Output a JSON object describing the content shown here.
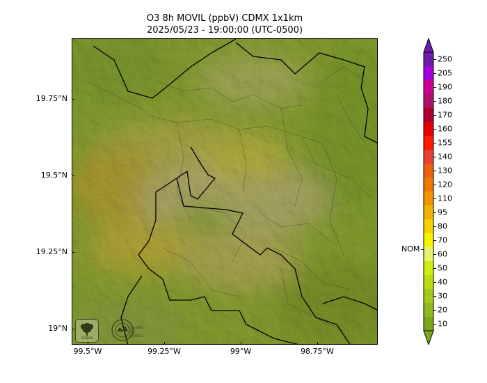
{
  "title": {
    "line1": "O3 8h MOVIL (ppbV) CDMX 1x1km",
    "line2": "2025/05/23 - 19:00:00 (UTC-0500)"
  },
  "axes": {
    "y_labels": [
      "19.75°N",
      "19.5°N",
      "19.25°N",
      "19°N"
    ],
    "x_labels": [
      "99.5°W",
      "99.25°W",
      "99°W",
      "98.75°W"
    ]
  },
  "colorbar": {
    "nom_label": "NOM",
    "levels": [
      {
        "value": "10",
        "color": "#7ea81c"
      },
      {
        "value": "20",
        "color": "#8fb81f"
      },
      {
        "value": "30",
        "color": "#a2cc17"
      },
      {
        "value": "40",
        "color": "#b9de10"
      },
      {
        "value": "50",
        "color": "#cfee0f"
      },
      {
        "value": "60",
        "color": "#e6f46a"
      },
      {
        "value": "70",
        "color": "#f7f200"
      },
      {
        "value": "80",
        "color": "#f5d200"
      },
      {
        "value": "95",
        "color": "#f2b200"
      },
      {
        "value": "110",
        "color": "#f29300"
      },
      {
        "value": "120",
        "color": "#f07800"
      },
      {
        "value": "130",
        "color": "#ee5f10"
      },
      {
        "value": "140",
        "color": "#ea4030"
      },
      {
        "value": "155",
        "color": "#ff1a00"
      },
      {
        "value": "160",
        "color": "#e60000"
      },
      {
        "value": "170",
        "color": "#b00030"
      },
      {
        "value": "180",
        "color": "#b0106c"
      },
      {
        "value": "190",
        "color": "#cc0099"
      },
      {
        "value": "205",
        "color": "#a600e0"
      },
      {
        "value": "250",
        "color": "#6d1aa8"
      }
    ]
  },
  "logos": {
    "left": "SEDEMA",
    "right": "CIUDAD DE MÉXICO"
  }
}
